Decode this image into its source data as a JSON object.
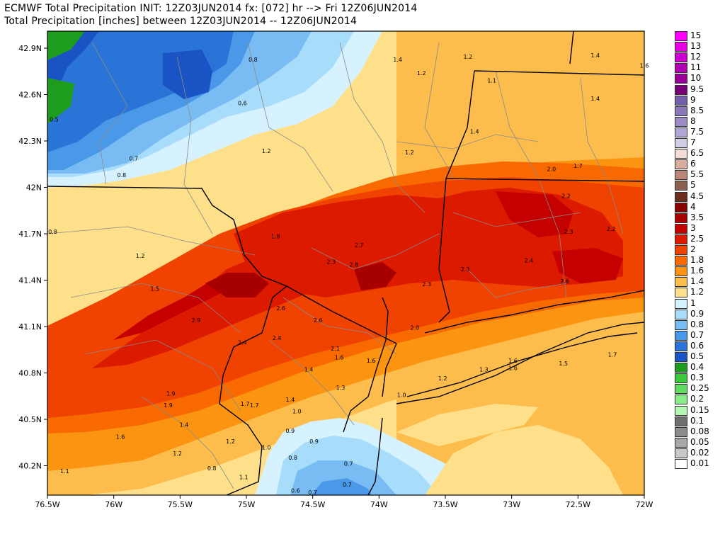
{
  "title_line1": "ECMWF Total Precipitation INIT: 12Z03JUN2014 fx: [072] hr --> Fri 12Z06JUN2014",
  "title_line2": "Total Precipitation [inches] between 12Z03JUN2014 -- 12Z06JUN2014",
  "x_ticks": [
    "76.5W",
    "76W",
    "75.5W",
    "75W",
    "74.5W",
    "74W",
    "73.5W",
    "73W",
    "72.5W",
    "72W"
  ],
  "y_ticks": [
    "42.9N",
    "42.6N",
    "42.3N",
    "42N",
    "41.7N",
    "41.4N",
    "41.1N",
    "40.8N",
    "40.5N",
    "40.2N"
  ],
  "legend": [
    {
      "label": "15",
      "color": "#ff00ff"
    },
    {
      "label": "13",
      "color": "#e600e6"
    },
    {
      "label": "12",
      "color": "#cc00cc"
    },
    {
      "label": "11",
      "color": "#b000b0"
    },
    {
      "label": "10",
      "color": "#990099"
    },
    {
      "label": "9.5",
      "color": "#7a007a"
    },
    {
      "label": "9",
      "color": "#7460a8"
    },
    {
      "label": "8.5",
      "color": "#8a78b8"
    },
    {
      "label": "8",
      "color": "#9c8cc6"
    },
    {
      "label": "7.5",
      "color": "#b2a6d4"
    },
    {
      "label": "7",
      "color": "#d2cce6"
    },
    {
      "label": "6.5",
      "color": "#f2dcd6"
    },
    {
      "label": "6",
      "color": "#d8aca0"
    },
    {
      "label": "5.5",
      "color": "#b8877a"
    },
    {
      "label": "5",
      "color": "#8c6050"
    },
    {
      "label": "4.5",
      "color": "#6b2e1e"
    },
    {
      "label": "4",
      "color": "#8a0000"
    },
    {
      "label": "3.5",
      "color": "#a80000"
    },
    {
      "label": "3",
      "color": "#c40000"
    },
    {
      "label": "2.5",
      "color": "#dc1a00"
    },
    {
      "label": "2",
      "color": "#f04200"
    },
    {
      "label": "1.8",
      "color": "#f86a00"
    },
    {
      "label": "1.6",
      "color": "#fb9410"
    },
    {
      "label": "1.4",
      "color": "#fdbd4c"
    },
    {
      "label": "1.2",
      "color": "#fee08a"
    },
    {
      "label": "1",
      "color": "#d6f2ff"
    },
    {
      "label": "0.9",
      "color": "#a8dcfb"
    },
    {
      "label": "0.8",
      "color": "#78bcf3"
    },
    {
      "label": "0.7",
      "color": "#4a98e8"
    },
    {
      "label": "0.6",
      "color": "#2a74d8"
    },
    {
      "label": "0.5",
      "color": "#1a54c4"
    },
    {
      "label": "0.4",
      "color": "#1e9c1e"
    },
    {
      "label": "0.3",
      "color": "#3cc83c"
    },
    {
      "label": "0.25",
      "color": "#60dc60"
    },
    {
      "label": "0.2",
      "color": "#88ec88"
    },
    {
      "label": "0.15",
      "color": "#b4f8b4"
    },
    {
      "label": "0.1",
      "color": "#6e6e6e"
    },
    {
      "label": "0.08",
      "color": "#8c8c8c"
    },
    {
      "label": "0.05",
      "color": "#a8a8a8"
    },
    {
      "label": "0.02",
      "color": "#c8c8c8"
    },
    {
      "label": "0.01",
      "color": "#ffffff"
    }
  ],
  "contour_labels": [
    {
      "lon": -74.95,
      "lat": 42.86,
      "text": "0.8"
    },
    {
      "lon": -75.03,
      "lat": 42.57,
      "text": "0.6"
    },
    {
      "lon": -76.45,
      "lat": 42.46,
      "text": "0.5"
    },
    {
      "lon": -75.85,
      "lat": 42.2,
      "text": "0.7"
    },
    {
      "lon": -75.94,
      "lat": 42.09,
      "text": "0.8"
    },
    {
      "lon": -74.85,
      "lat": 42.25,
      "text": "1.2"
    },
    {
      "lon": -73.86,
      "lat": 42.86,
      "text": "1.4"
    },
    {
      "lon": -73.68,
      "lat": 42.77,
      "text": "1.2"
    },
    {
      "lon": -73.33,
      "lat": 42.88,
      "text": "1.2"
    },
    {
      "lon": -72.37,
      "lat": 42.89,
      "text": "1.4"
    },
    {
      "lon": -72.0,
      "lat": 42.82,
      "text": "1.6"
    },
    {
      "lon": -73.15,
      "lat": 42.72,
      "text": "1.1"
    },
    {
      "lon": -72.37,
      "lat": 42.6,
      "text": "1.4"
    },
    {
      "lon": -73.28,
      "lat": 42.38,
      "text": "1.4"
    },
    {
      "lon": -73.77,
      "lat": 42.24,
      "text": "1.2"
    },
    {
      "lon": -72.5,
      "lat": 42.15,
      "text": "1.7"
    },
    {
      "lon": -72.7,
      "lat": 42.13,
      "text": "2.0"
    },
    {
      "lon": -72.59,
      "lat": 41.95,
      "text": "2.2"
    },
    {
      "lon": -72.25,
      "lat": 41.73,
      "text": "2.2"
    },
    {
      "lon": -72.57,
      "lat": 41.71,
      "text": "2.3"
    },
    {
      "lon": -76.46,
      "lat": 41.71,
      "text": "0.8"
    },
    {
      "lon": -75.8,
      "lat": 41.55,
      "text": "1.2"
    },
    {
      "lon": -75.69,
      "lat": 41.33,
      "text": "1.5"
    },
    {
      "lon": -74.78,
      "lat": 41.68,
      "text": "1.8"
    },
    {
      "lon": -74.15,
      "lat": 41.62,
      "text": "2.7"
    },
    {
      "lon": -74.36,
      "lat": 41.51,
      "text": "2.3"
    },
    {
      "lon": -74.19,
      "lat": 41.49,
      "text": "2.8"
    },
    {
      "lon": -73.35,
      "lat": 41.46,
      "text": "2.3"
    },
    {
      "lon": -72.87,
      "lat": 41.52,
      "text": "2.4"
    },
    {
      "lon": -72.6,
      "lat": 41.38,
      "text": "2.6"
    },
    {
      "lon": -73.64,
      "lat": 41.36,
      "text": "2.3"
    },
    {
      "lon": -74.74,
      "lat": 41.2,
      "text": "2.6"
    },
    {
      "lon": -74.46,
      "lat": 41.12,
      "text": "2.6"
    },
    {
      "lon": -75.38,
      "lat": 41.12,
      "text": "2.9"
    },
    {
      "lon": -75.03,
      "lat": 40.97,
      "text": "2.4"
    },
    {
      "lon": -74.77,
      "lat": 41.0,
      "text": "2.4"
    },
    {
      "lon": -73.73,
      "lat": 41.07,
      "text": "2.0"
    },
    {
      "lon": -74.33,
      "lat": 40.93,
      "text": "2.1"
    },
    {
      "lon": -74.3,
      "lat": 40.87,
      "text": "1.6"
    },
    {
      "lon": -74.06,
      "lat": 40.85,
      "text": "1.6"
    },
    {
      "lon": -74.53,
      "lat": 40.79,
      "text": "1.4"
    },
    {
      "lon": -73.21,
      "lat": 40.79,
      "text": "1.3"
    },
    {
      "lon": -72.99,
      "lat": 40.85,
      "text": "1.6"
    },
    {
      "lon": -72.99,
      "lat": 40.8,
      "text": "1.6"
    },
    {
      "lon": -72.61,
      "lat": 40.83,
      "text": "1.5"
    },
    {
      "lon": -72.24,
      "lat": 40.89,
      "text": "1.7"
    },
    {
      "lon": -73.52,
      "lat": 40.73,
      "text": "1.2"
    },
    {
      "lon": -74.29,
      "lat": 40.67,
      "text": "1.3"
    },
    {
      "lon": -73.83,
      "lat": 40.62,
      "text": "1.0"
    },
    {
      "lon": -75.57,
      "lat": 40.63,
      "text": "1.9"
    },
    {
      "lon": -75.59,
      "lat": 40.55,
      "text": "1.9"
    },
    {
      "lon": -75.01,
      "lat": 40.56,
      "text": "1.7"
    },
    {
      "lon": -74.94,
      "lat": 40.55,
      "text": "1.7"
    },
    {
      "lon": -74.67,
      "lat": 40.59,
      "text": "1.4"
    },
    {
      "lon": -74.62,
      "lat": 40.51,
      "text": "1.0"
    },
    {
      "lon": -75.47,
      "lat": 40.42,
      "text": "1.4"
    },
    {
      "lon": -75.95,
      "lat": 40.34,
      "text": "1.6"
    },
    {
      "lon": -75.12,
      "lat": 40.31,
      "text": "1.2"
    },
    {
      "lon": -74.67,
      "lat": 40.38,
      "text": "0.9"
    },
    {
      "lon": -74.49,
      "lat": 40.31,
      "text": "0.9"
    },
    {
      "lon": -74.85,
      "lat": 40.27,
      "text": "1.0"
    },
    {
      "lon": -74.65,
      "lat": 40.2,
      "text": "0.8"
    },
    {
      "lon": -75.52,
      "lat": 40.23,
      "text": "1.2"
    },
    {
      "lon": -75.26,
      "lat": 40.13,
      "text": "0.8"
    },
    {
      "lon": -74.23,
      "lat": 40.16,
      "text": "0.7"
    },
    {
      "lon": -76.37,
      "lat": 40.11,
      "text": "1.1"
    },
    {
      "lon": -75.02,
      "lat": 40.07,
      "text": "1.1"
    },
    {
      "lon": -74.24,
      "lat": 40.02,
      "text": "0.7"
    },
    {
      "lon": -74.5,
      "lat": 39.97,
      "text": "0.7"
    },
    {
      "lon": -74.63,
      "lat": 39.98,
      "text": "0.6"
    }
  ]
}
